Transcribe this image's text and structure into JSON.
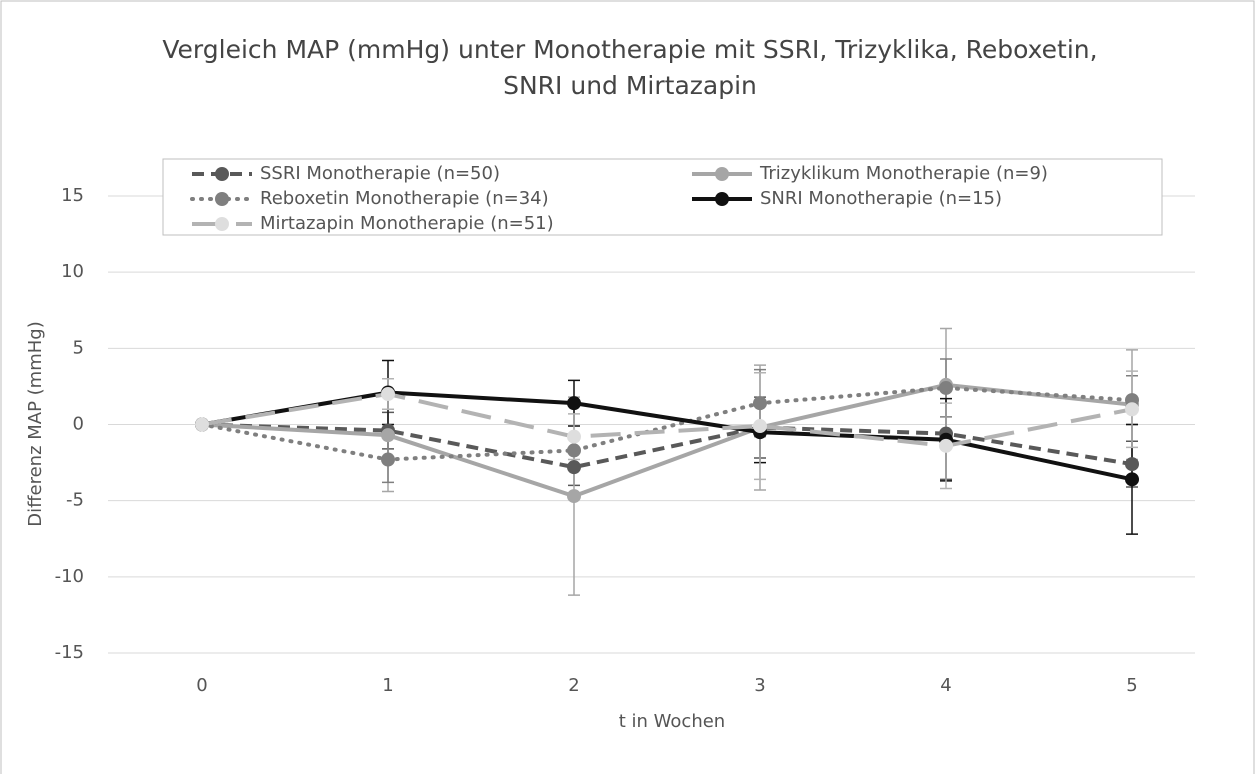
{
  "chart_data": {
    "type": "line",
    "title": "Vergleich MAP (mmHg) unter Monotherapie mit SSRI, Trizyklika, Reboxetin, SNRI und Mirtazapin",
    "x_label": "t in Wochen",
    "y_label": "Differenz MAP (mmHg)",
    "categories": [
      "0",
      "1",
      "2",
      "3",
      "4",
      "5"
    ],
    "ylim": [
      -15,
      15
    ],
    "yticks": [
      -15,
      -10,
      -5,
      0,
      5,
      10,
      15
    ],
    "grid": true,
    "series": [
      {
        "name": "SSRI Monotherapie (n=50)",
        "color": "#595959",
        "marker_color": "#595959",
        "line_style": "dashed",
        "values": [
          0,
          -0.4,
          -2.8,
          -0.2,
          -0.6,
          -2.6
        ],
        "errors": [
          0,
          1.2,
          1.2,
          2.0,
          3.0,
          1.5
        ]
      },
      {
        "name": "Trizyklikum Monotherapie (n=9)",
        "color": "#a6a6a6",
        "marker_color": "#a6a6a6",
        "line_style": "solid",
        "values": [
          0,
          -0.7,
          -4.7,
          -0.2,
          2.6,
          1.3
        ],
        "errors": [
          0,
          3.7,
          6.5,
          4.1,
          3.7,
          3.6
        ]
      },
      {
        "name": "Reboxetin Monotherapie (n=34)",
        "color": "#7f7f7f",
        "marker_color": "#7f7f7f",
        "line_style": "dotted",
        "values": [
          0,
          -2.3,
          -1.7,
          1.4,
          2.4,
          1.6
        ],
        "errors": [
          0,
          1.5,
          1.0,
          2.2,
          1.9,
          1.6
        ]
      },
      {
        "name": "SNRI Monotherapie (n=15)",
        "color": "#111111",
        "marker_color": "#111111",
        "line_style": "solid",
        "values": [
          0,
          2.1,
          1.4,
          -0.5,
          -1.0,
          -3.6
        ],
        "errors": [
          0,
          2.1,
          1.5,
          2.0,
          2.7,
          3.6
        ]
      },
      {
        "name": "Mirtazapin Monotherapie (n=51)",
        "color": "#b3b3b3",
        "marker_color": "#dedede",
        "line_style": "long-dash",
        "values": [
          0,
          2.0,
          -0.8,
          -0.1,
          -1.4,
          1.0
        ],
        "errors": [
          0,
          1.0,
          1.5,
          3.5,
          2.8,
          2.5
        ]
      }
    ]
  }
}
